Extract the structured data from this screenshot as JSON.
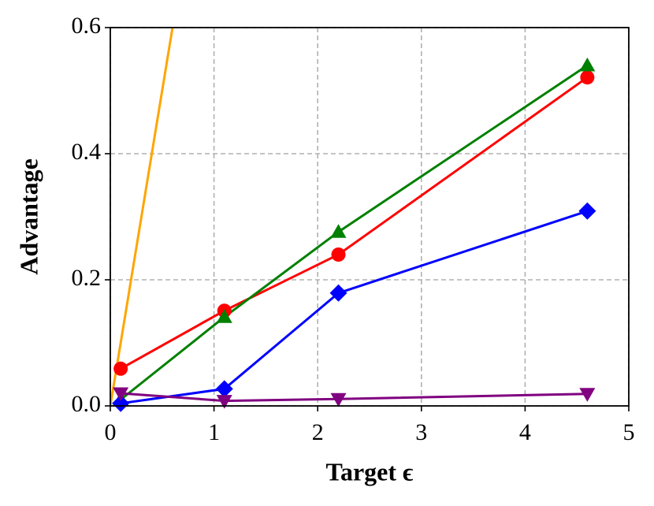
{
  "chart_data": {
    "type": "line",
    "x_label": "Target ϵ",
    "y_label": "Advantage",
    "x": [
      0.1,
      1.1,
      2.2,
      4.6
    ],
    "series": [
      {
        "color": "#ffa500",
        "x": [
          0,
          0.6
        ],
        "values": [
          0,
          0.6
        ],
        "marker": "none"
      },
      {
        "color": "#ff0000",
        "values": [
          0.059,
          0.151,
          0.24,
          0.521
        ],
        "marker": "circle"
      },
      {
        "color": "#008000",
        "values": [
          0.01,
          0.141,
          0.276,
          0.54
        ],
        "marker": "triangle-up"
      },
      {
        "color": "#0000ff",
        "values": [
          0.004,
          0.027,
          0.179,
          0.309
        ],
        "marker": "diamond"
      },
      {
        "color": "#800080",
        "values": [
          0.02,
          0.008,
          0.011,
          0.019
        ],
        "marker": "triangle-down"
      }
    ],
    "xlim": [
      0,
      5
    ],
    "ylim": [
      0,
      0.6
    ],
    "xticks": [
      0,
      1,
      2,
      3,
      4,
      5
    ],
    "yticks": [
      {
        "value": 0,
        "label": "0.0"
      },
      0.2,
      0.4,
      0.6
    ],
    "grid": true
  }
}
